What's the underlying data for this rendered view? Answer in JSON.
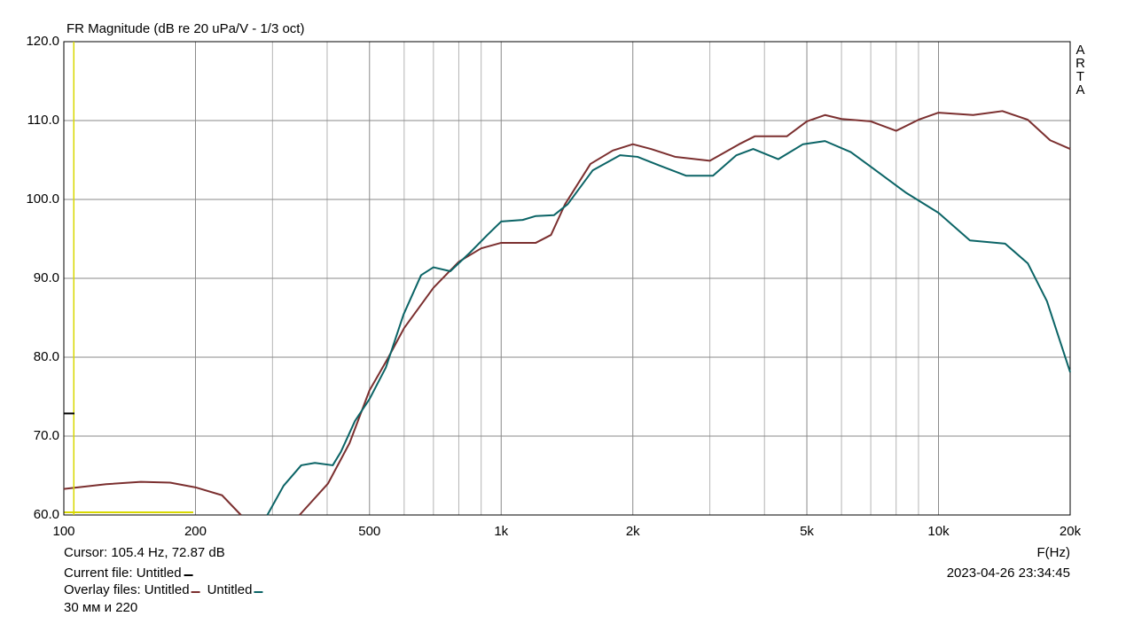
{
  "chart_data": {
    "type": "line",
    "title": "FR Magnitude (dB re 20 uPa/V - 1/3 oct)",
    "x_label": "F(Hz)",
    "xscale": "log",
    "grid": true,
    "xlim": [
      100,
      20000
    ],
    "ylim": [
      60,
      120
    ],
    "xticks": [
      100,
      200,
      500,
      {
        "value": 1000,
        "label": "1k"
      },
      {
        "value": 2000,
        "label": "2k"
      },
      {
        "value": 5000,
        "label": "5k"
      },
      {
        "value": 10000,
        "label": "10k"
      },
      {
        "value": 20000,
        "label": "20k"
      }
    ],
    "xminor": [
      300,
      400,
      600,
      700,
      800,
      900,
      3000,
      4000,
      6000,
      7000,
      8000,
      9000
    ],
    "yticks": [
      {
        "value": 60,
        "label": "60.0"
      },
      {
        "value": 70,
        "label": "70.0"
      },
      {
        "value": 80,
        "label": "80.0"
      },
      {
        "value": 90,
        "label": "90.0"
      },
      {
        "value": 100,
        "label": "100.0"
      },
      {
        "value": 110,
        "label": "110.0"
      },
      {
        "value": 120,
        "label": "120.0"
      }
    ],
    "watermark": "ARTA",
    "cursor_text": "Cursor: 105.4 Hz, 72.87 dB",
    "cursor_x": 105.4,
    "cursor_y": 72.87,
    "current_file": "Current file: Untitled",
    "overlay_label": "Overlay files:",
    "note": "30 мм и 220",
    "timestamp": "2023-04-26  23:34:45",
    "series": [
      {
        "name": "Untitled",
        "color": "#7b2f2f",
        "x": [
          100,
          125,
          150,
          175,
          200,
          230,
          254,
          300,
          346,
          402,
          450,
          500,
          550,
          600,
          700,
          800,
          900,
          1000,
          1200,
          1300,
          1400,
          1600,
          1800,
          2000,
          2200,
          2500,
          3000,
          3500,
          3800,
          4500,
          5000,
          5500,
          6000,
          7000,
          8000,
          9000,
          10000,
          12000,
          14000,
          16000,
          18000,
          20000
        ],
        "values": [
          63.3,
          63.9,
          64.2,
          64.1,
          63.5,
          62.5,
          60.0,
          null,
          60.0,
          64.0,
          69.1,
          75.8,
          79.8,
          83.7,
          88.8,
          92.1,
          93.8,
          94.5,
          94.5,
          95.5,
          99.4,
          104.5,
          106.2,
          107.0,
          106.4,
          105.4,
          104.9,
          107.0,
          108.0,
          108.0,
          109.9,
          110.7,
          110.2,
          109.9,
          108.7,
          110.1,
          111.0,
          110.7,
          111.2,
          110.1,
          107.5,
          106.4
        ]
      },
      {
        "name": "Untitled",
        "color": "#0b6466",
        "x": [
          292,
          318,
          349,
          375,
          412,
          430,
          463,
          500,
          545,
          598,
          656,
          700,
          765,
          850,
          930,
          1000,
          1120,
          1200,
          1320,
          1420,
          1620,
          1870,
          2050,
          2300,
          2650,
          3050,
          3450,
          3770,
          4300,
          4900,
          5500,
          6300,
          7100,
          8400,
          10000,
          11800,
          14200,
          16000,
          17700,
          20000
        ],
        "values": [
          60.0,
          63.7,
          66.3,
          66.6,
          66.3,
          68.0,
          71.9,
          74.7,
          78.7,
          85.4,
          90.4,
          91.4,
          90.9,
          93.3,
          95.5,
          97.2,
          97.4,
          97.9,
          98.0,
          99.4,
          103.7,
          105.6,
          105.4,
          104.3,
          103.0,
          103.0,
          105.6,
          106.4,
          105.1,
          107.0,
          107.4,
          106.0,
          103.9,
          100.9,
          98.3,
          94.8,
          94.4,
          91.9,
          87.1,
          78.1
        ]
      }
    ]
  }
}
